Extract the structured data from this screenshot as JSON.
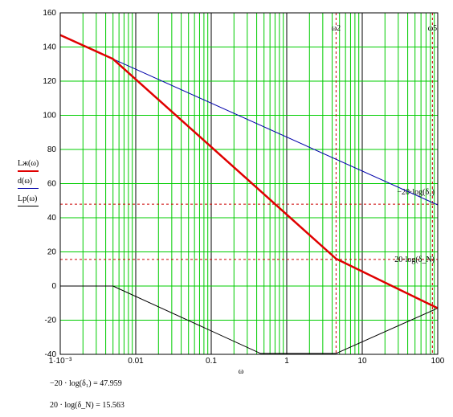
{
  "chart_data": {
    "type": "line",
    "x_scale": "log",
    "xlim": [
      0.001,
      100
    ],
    "ylim": [
      -40,
      160
    ],
    "grid": true,
    "grid_color": "#00cc00",
    "xlabel": "ω",
    "x_ticks": [
      {
        "value": 0.001,
        "label": "1·10⁻³"
      },
      {
        "value": 0.01,
        "label": "0.01"
      },
      {
        "value": 0.1,
        "label": "0.1"
      },
      {
        "value": 1,
        "label": "1"
      },
      {
        "value": 10,
        "label": "10"
      },
      {
        "value": 100,
        "label": "100"
      }
    ],
    "y_ticks": [
      -40,
      -20,
      0,
      20,
      40,
      60,
      80,
      100,
      120,
      140,
      160
    ],
    "legend": [
      {
        "label": "Lж(ω)",
        "color": "#e00000"
      },
      {
        "label": "d(ω)",
        "color": "#0000aa"
      },
      {
        "label": "Lp(ω)",
        "color": "#000000"
      }
    ],
    "series": [
      {
        "name": "Lж(ω)",
        "color": "#e00000",
        "width": 2.5,
        "points": [
          [
            0.001,
            147
          ],
          [
            0.005,
            133
          ],
          [
            4.5,
            16
          ],
          [
            100,
            -13
          ]
        ]
      },
      {
        "name": "d(ω)",
        "color": "#0000aa",
        "width": 1,
        "points": [
          [
            0.001,
            147
          ],
          [
            0.005,
            133
          ],
          [
            100,
            47.5
          ]
        ]
      },
      {
        "name": "Lp(ω)",
        "color": "#000000",
        "width": 1,
        "points": [
          [
            0.001,
            0
          ],
          [
            0.005,
            0
          ],
          [
            0.45,
            -39.5
          ],
          [
            4.5,
            -39.5
          ],
          [
            100,
            -13
          ]
        ]
      }
    ],
    "h_dashed_lines": [
      {
        "y": 47.959,
        "label": "−20·log(δ₁)",
        "color": "#cc0000"
      },
      {
        "y": 15.563,
        "label": "20·log(δ_N)",
        "color": "#cc0000"
      }
    ],
    "v_dashed_lines": [
      {
        "x": 4.5,
        "label": "ω2",
        "color": "#cc0000"
      },
      {
        "x": 85,
        "label": "ω5",
        "color": "#cc0000"
      }
    ],
    "formulas": [
      {
        "text": "−20 · log(δ₁) = 47.959"
      },
      {
        "text": "20 · log(δ_N) = 15.563"
      }
    ]
  }
}
